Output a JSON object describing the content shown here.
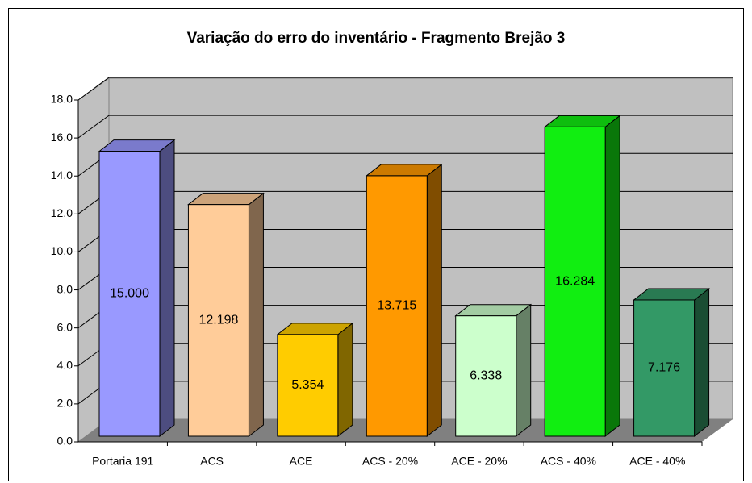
{
  "chart_data": {
    "type": "bar3d",
    "title": "Variação do erro do inventário - Fragmento Brejão 3",
    "categories": [
      "Portaria 191",
      "ACS",
      "ACE",
      "ACS - 20%",
      "ACE - 20%",
      "ACS - 40%",
      "ACE - 40%"
    ],
    "values": [
      15.0,
      12.198,
      5.354,
      13.715,
      6.338,
      16.284,
      7.176
    ],
    "value_labels": [
      "15.000",
      "12.198",
      "5.354",
      "13.715",
      "6.338",
      "16.284",
      "7.176"
    ],
    "colors": [
      "#9999ff",
      "#ffcc99",
      "#ffcc00",
      "#ff9900",
      "#ccffcc",
      "#11ee11",
      "#339966"
    ],
    "ylim": [
      0,
      18
    ],
    "yticks": [
      {
        "value": 0,
        "label": "0.0"
      },
      {
        "value": 2,
        "label": "2.0"
      },
      {
        "value": 4,
        "label": "4.0"
      },
      {
        "value": 6,
        "label": "6.0"
      },
      {
        "value": 8,
        "label": "8.0"
      },
      {
        "value": 10,
        "label": "10.0"
      },
      {
        "value": 12,
        "label": "12.0"
      },
      {
        "value": 14,
        "label": "14.0"
      },
      {
        "value": 16,
        "label": "16.0"
      },
      {
        "value": 18,
        "label": "18.0"
      }
    ],
    "grid": true
  }
}
